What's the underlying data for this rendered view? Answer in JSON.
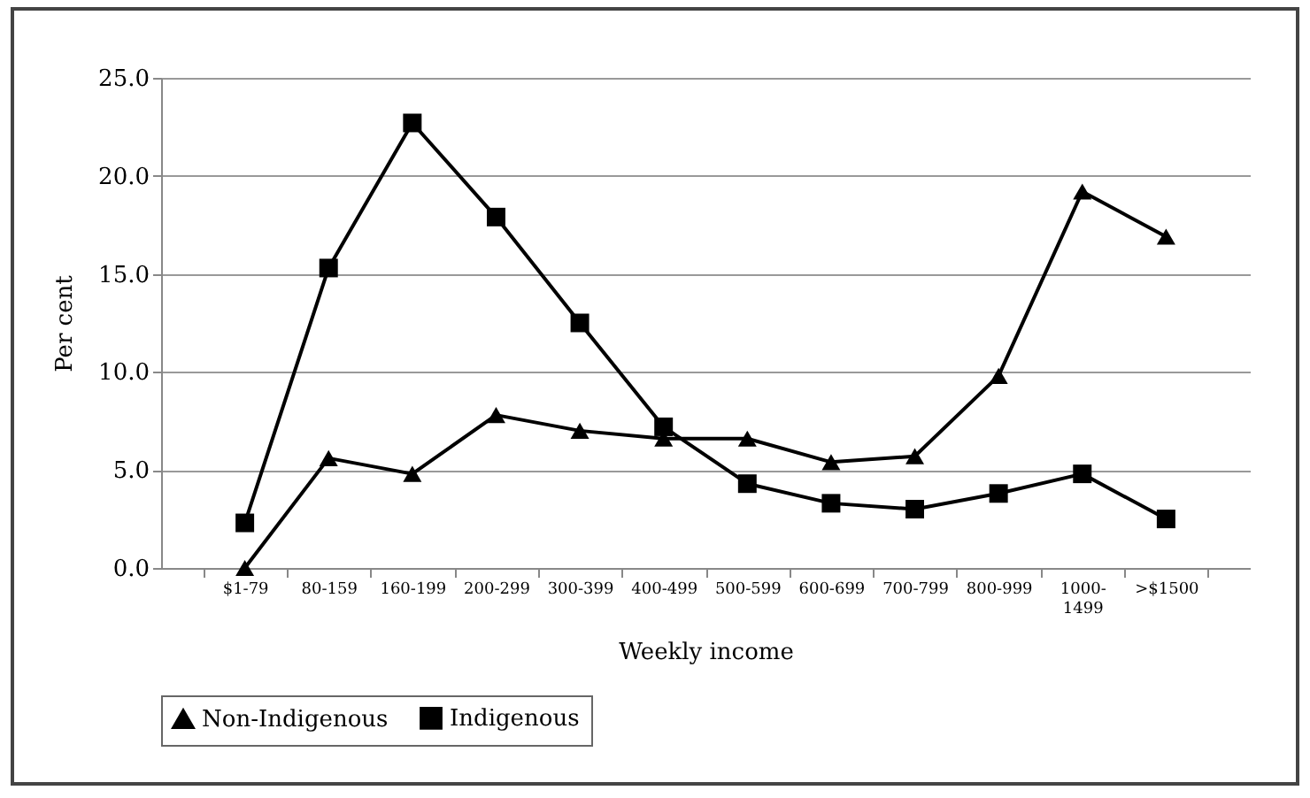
{
  "chart_data": {
    "type": "line",
    "xlabel": "Weekly income",
    "ylabel": "Per cent",
    "categories": [
      "$1-79",
      "80-159",
      "160-199",
      "200-299",
      "300-399",
      "400-499",
      "500-599",
      "600-699",
      "700-799",
      "800-999",
      "1000-1499",
      ">$1500"
    ],
    "series": [
      {
        "name": "Non-Indigenous",
        "color": "#000000",
        "marker": "triangle",
        "values": [
          0.0,
          5.6,
          4.8,
          7.8,
          7.0,
          6.6,
          6.6,
          5.4,
          5.7,
          9.8,
          19.2,
          16.9
        ]
      },
      {
        "name": "Indigenous",
        "color": "#000000",
        "marker": "square",
        "values": [
          2.3,
          15.3,
          22.7,
          17.9,
          12.5,
          7.2,
          4.3,
          3.3,
          3.0,
          3.8,
          4.8,
          2.5
        ]
      }
    ],
    "ylim": [
      0,
      25
    ],
    "yticks": [
      {
        "value": 0,
        "label": "0.0"
      },
      {
        "value": 5,
        "label": "5.0"
      },
      {
        "value": 10,
        "label": "10.0"
      },
      {
        "value": 15,
        "label": "15.0"
      },
      {
        "value": 20,
        "label": "20.0"
      },
      {
        "value": 25,
        "label": "25.0"
      }
    ],
    "grid": "y",
    "legend": "bottom",
    "line_style": "solid"
  }
}
